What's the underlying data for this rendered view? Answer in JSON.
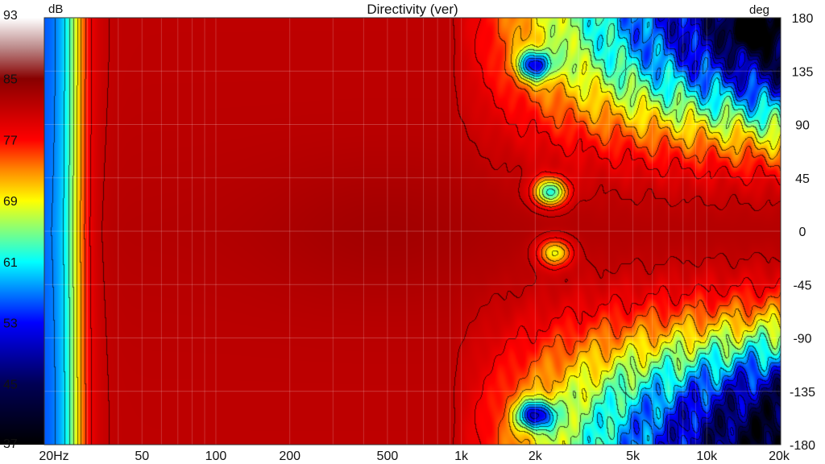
{
  "chart_data": {
    "type": "heatmap",
    "title": "Directivity (ver)",
    "colorbar": {
      "unit": "dB",
      "min": 37,
      "max": 93,
      "ticks": [
        93,
        85,
        77,
        69,
        61,
        53,
        45,
        37
      ],
      "stops": [
        {
          "value": 37,
          "color": "#000000"
        },
        {
          "value": 45,
          "color": "#000055"
        },
        {
          "value": 53,
          "color": "#0000ff"
        },
        {
          "value": 61,
          "color": "#00ffff"
        },
        {
          "value": 69,
          "color": "#ffff00"
        },
        {
          "value": 73,
          "color": "#ff8800"
        },
        {
          "value": 77,
          "color": "#ff0000"
        },
        {
          "value": 85,
          "color": "#880000"
        },
        {
          "value": 89,
          "color": "#bb8888"
        },
        {
          "value": 93,
          "color": "#ffffff"
        }
      ]
    },
    "x_axis": {
      "scale": "log",
      "range": [
        20,
        20000
      ],
      "tick_values": [
        20,
        50,
        100,
        200,
        500,
        1000,
        2000,
        5000,
        10000,
        20000
      ],
      "tick_labels": [
        "20Hz",
        "50",
        "100",
        "200",
        "500",
        "1k",
        "2k",
        "5k",
        "10k",
        "20k"
      ]
    },
    "y_axis": {
      "unit": "deg",
      "range": [
        -180,
        180
      ],
      "tick_values": [
        180,
        135,
        90,
        45,
        0,
        -45,
        -90,
        -135,
        -180
      ],
      "tick_labels": [
        "180",
        "135",
        "90",
        "45",
        "0",
        "-45",
        "-90",
        "-135",
        "-180"
      ]
    },
    "grid": true,
    "contour_interval_db": 3,
    "features": [
      {
        "desc": "low-frequency rolloff",
        "freq": [
          20,
          35
        ],
        "level_db": [
          53,
          79
        ]
      },
      {
        "desc": "on-axis plateau",
        "freq": [
          50,
          1000
        ],
        "level_db": 82
      },
      {
        "desc": "null",
        "freq": 2300,
        "angle": 33,
        "level_db": 50
      },
      {
        "desc": "null",
        "freq": 2400,
        "angle": -18,
        "level_db": 60
      },
      {
        "desc": "off-axis dip",
        "freq": 2000,
        "angle": 140,
        "level_db": 48
      },
      {
        "desc": "off-axis dip",
        "freq": 2000,
        "angle": -155,
        "level_db": 45
      },
      {
        "desc": "rear high-frequency low",
        "freq": 15000,
        "angle": 170,
        "level_db": 45
      }
    ]
  }
}
